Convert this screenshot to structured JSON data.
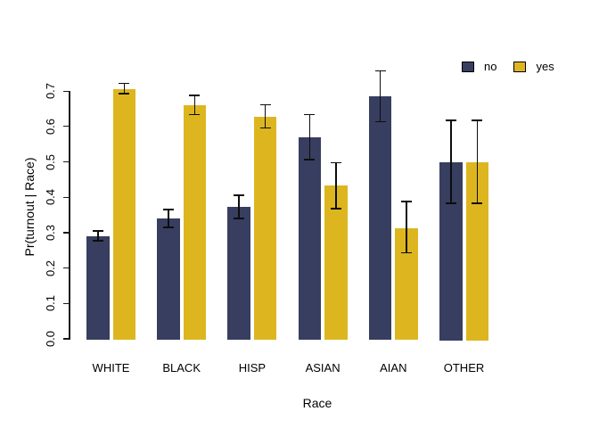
{
  "chart_data": {
    "type": "bar",
    "title": "",
    "xlabel": "Race",
    "ylabel": "Pr(turnout | Race)",
    "categories": [
      "WHITE",
      "BLACK",
      "HISP",
      "ASIAN",
      "AIAN",
      "OTHER"
    ],
    "series": [
      {
        "name": "no",
        "color": "#373e60",
        "values": [
          0.29,
          0.34,
          0.372,
          0.57,
          0.685,
          0.5
        ],
        "ci_low": [
          0.277,
          0.315,
          0.34,
          0.507,
          0.613,
          0.383
        ],
        "ci_high": [
          0.305,
          0.365,
          0.405,
          0.633,
          0.757,
          0.617
        ]
      },
      {
        "name": "yes",
        "color": "#ddb61f",
        "values": [
          0.705,
          0.66,
          0.628,
          0.432,
          0.313,
          0.5
        ],
        "ci_low": [
          0.693,
          0.634,
          0.596,
          0.368,
          0.243,
          0.383
        ],
        "ci_high": [
          0.722,
          0.688,
          0.661,
          0.497,
          0.388,
          0.617
        ]
      }
    ],
    "ylim": [
      0.0,
      0.7
    ],
    "yticks": [
      "0.0",
      "0.1",
      "0.2",
      "0.3",
      "0.4",
      "0.5",
      "0.6",
      "0.7"
    ],
    "legend": {
      "position": "top-right"
    },
    "grid": false,
    "error_bars": true,
    "error_bar_color": "#0d0d0d",
    "background": "#ffffff"
  }
}
